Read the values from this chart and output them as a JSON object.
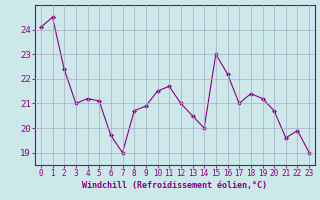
{
  "x": [
    0,
    1,
    2,
    3,
    4,
    5,
    6,
    7,
    8,
    9,
    10,
    11,
    12,
    13,
    14,
    15,
    16,
    17,
    18,
    19,
    20,
    21,
    22,
    23
  ],
  "y": [
    24.1,
    24.5,
    22.4,
    21.0,
    21.2,
    21.1,
    19.7,
    19.0,
    20.7,
    20.9,
    21.5,
    21.7,
    21.0,
    20.5,
    20.0,
    23.0,
    22.2,
    21.0,
    21.4,
    21.2,
    20.7,
    19.6,
    19.9,
    19.0
  ],
  "line_color": "#880088",
  "marker": "D",
  "marker_size": 2.0,
  "bg_color": "#cce8e8",
  "grid_color": "#aaaacc",
  "xlabel": "Windchill (Refroidissement éolien,°C)",
  "xlabel_color": "#880088",
  "tick_color": "#880088",
  "ylim": [
    18.5,
    25.0
  ],
  "xlim": [
    -0.5,
    23.5
  ],
  "yticks": [
    19,
    20,
    21,
    22,
    23,
    24
  ],
  "xticks": [
    0,
    1,
    2,
    3,
    4,
    5,
    6,
    7,
    8,
    9,
    10,
    11,
    12,
    13,
    14,
    15,
    16,
    17,
    18,
    19,
    20,
    21,
    22,
    23
  ],
  "tick_fontsize": 5.5,
  "xlabel_fontsize": 6.0,
  "ytick_fontsize": 6.5
}
